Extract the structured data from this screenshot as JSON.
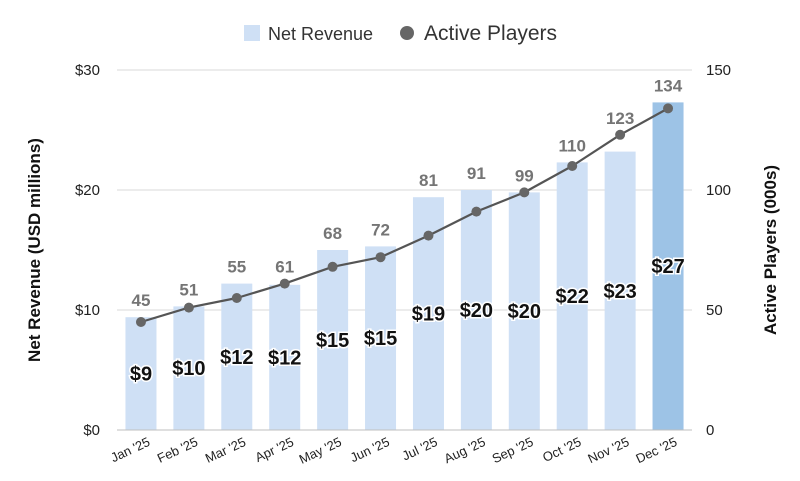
{
  "chart_data": {
    "type": "bar",
    "categories": [
      "Jan '25",
      "Feb '25",
      "Mar '25",
      "Apr '25",
      "May '25",
      "Jun '25",
      "Jul '25",
      "Aug '25",
      "Sep '25",
      "Oct '25",
      "Nov '25",
      "Dec '25"
    ],
    "series": [
      {
        "name": "Net Revenue",
        "type": "bar",
        "axis": "left",
        "values": [
          9.4,
          10.3,
          12.2,
          12.1,
          15.0,
          15.3,
          19.4,
          20.0,
          19.8,
          22.3,
          23.2,
          27.3
        ],
        "labels": [
          "$9",
          "$10",
          "$12",
          "$12",
          "$15",
          "$15",
          "$19",
          "$20",
          "$20",
          "$22",
          "$23",
          "$27"
        ],
        "color": "#cfe0f5",
        "highlight_color": "#9dc3e6",
        "highlight_index": 11
      },
      {
        "name": "Active Players",
        "type": "line",
        "axis": "right",
        "values": [
          45,
          51,
          55,
          61,
          68,
          72,
          81,
          91,
          99,
          110,
          123,
          134
        ],
        "labels": [
          "45",
          "51",
          "55",
          "61",
          "68",
          "72",
          "81",
          "91",
          "99",
          "110",
          "123",
          "134"
        ],
        "color": "#555555"
      }
    ],
    "ylabel": "Net Revenue (USD millions)",
    "y2label": "Active Players (000s)",
    "ylim": [
      0,
      30
    ],
    "y2lim": [
      0,
      150
    ],
    "yticks": [
      "$0",
      "$10",
      "$20",
      "$30"
    ],
    "y2ticks": [
      "0",
      "50",
      "100",
      "150"
    ],
    "ytick_values": [
      0,
      10,
      20,
      30
    ],
    "y2tick_values": [
      0,
      50,
      100,
      150
    ],
    "grid": true,
    "legend": "top-center"
  }
}
